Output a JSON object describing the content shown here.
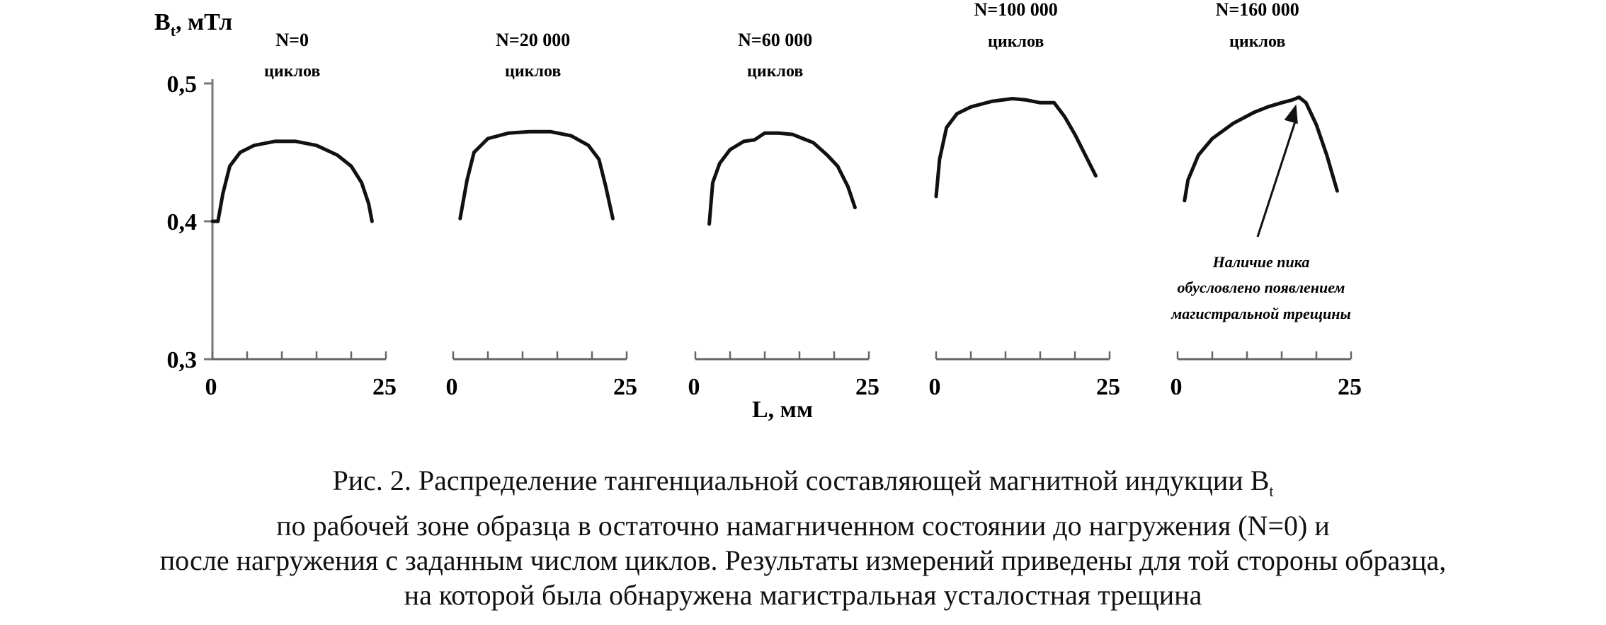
{
  "chart_data": {
    "type": "line",
    "ylabel_main": "B",
    "ylabel_sub": "t",
    "ylabel_unit": ", мТл",
    "xlabel": "L, мм",
    "ylim": [
      0.3,
      0.5
    ],
    "xlim": [
      0,
      25
    ],
    "y_ticks": [
      0.3,
      0.4,
      0.5
    ],
    "y_tick_labels": [
      "0,3",
      "0,4",
      "0,5"
    ],
    "x_tick_labels": [
      "0",
      "25"
    ],
    "series": [
      {
        "name_line1": "N=0",
        "name_line2": "циклов",
        "x": [
          0,
          0.8,
          1.5,
          2.5,
          4,
          6,
          9,
          12,
          15,
          18,
          20,
          21.5,
          22.5,
          23
        ],
        "y": [
          0.4,
          0.4,
          0.42,
          0.44,
          0.45,
          0.455,
          0.458,
          0.458,
          0.455,
          0.448,
          0.44,
          0.428,
          0.413,
          0.4
        ]
      },
      {
        "name_line1": "N=20 000",
        "name_line2": "циклов",
        "x": [
          1,
          2,
          3,
          5,
          8,
          11,
          14,
          17,
          19.5,
          21,
          22,
          23
        ],
        "y": [
          0.402,
          0.43,
          0.45,
          0.46,
          0.464,
          0.465,
          0.465,
          0.462,
          0.455,
          0.445,
          0.425,
          0.402
        ]
      },
      {
        "name_line1": "N=60 000",
        "name_line2": "циклов",
        "x": [
          2,
          2.5,
          3.5,
          5,
          7,
          8.5,
          10,
          12,
          14,
          15.5,
          17,
          19,
          20.5,
          22,
          23
        ],
        "y": [
          0.398,
          0.428,
          0.442,
          0.452,
          0.458,
          0.459,
          0.464,
          0.464,
          0.463,
          0.46,
          0.457,
          0.448,
          0.44,
          0.425,
          0.41
        ]
      },
      {
        "name_line1": "N=100 000",
        "name_line2": "циклов",
        "x": [
          0,
          0.5,
          1.5,
          3,
          5,
          8,
          11,
          13,
          15,
          17,
          18.5,
          20,
          21.5,
          23
        ],
        "y": [
          0.418,
          0.445,
          0.468,
          0.478,
          0.483,
          0.487,
          0.489,
          0.488,
          0.486,
          0.486,
          0.476,
          0.463,
          0.448,
          0.433
        ]
      },
      {
        "name_line1": "N=160 000",
        "name_line2": "циклов",
        "x": [
          1,
          1.5,
          3,
          5,
          8,
          11,
          13,
          15,
          16.5,
          17.5,
          18.5,
          20,
          21.5,
          23
        ],
        "y": [
          0.415,
          0.43,
          0.448,
          0.46,
          0.471,
          0.479,
          0.483,
          0.486,
          0.488,
          0.49,
          0.486,
          0.47,
          0.448,
          0.422
        ]
      }
    ],
    "annotation": {
      "lines": [
        "Наличие пика",
        "обусловлено появлением",
        "магистральной трещины"
      ],
      "points_to": {
        "series_index": 4,
        "x": 17.5,
        "y": 0.49
      }
    }
  },
  "caption": {
    "line1": "Рис. 2. Распределение тангенциальной составляющей магнитной индукции B",
    "line1_sub": "t",
    "line2": "по рабочей зоне образца в остаточно намагниченном состоянии до нагружения (N=0) и",
    "line3": "после нагружения с заданным числом циклов. Результаты измерений приведены для той стороны образца,",
    "line4": "на которой была обнаружена магистральная усталостная трещина"
  }
}
